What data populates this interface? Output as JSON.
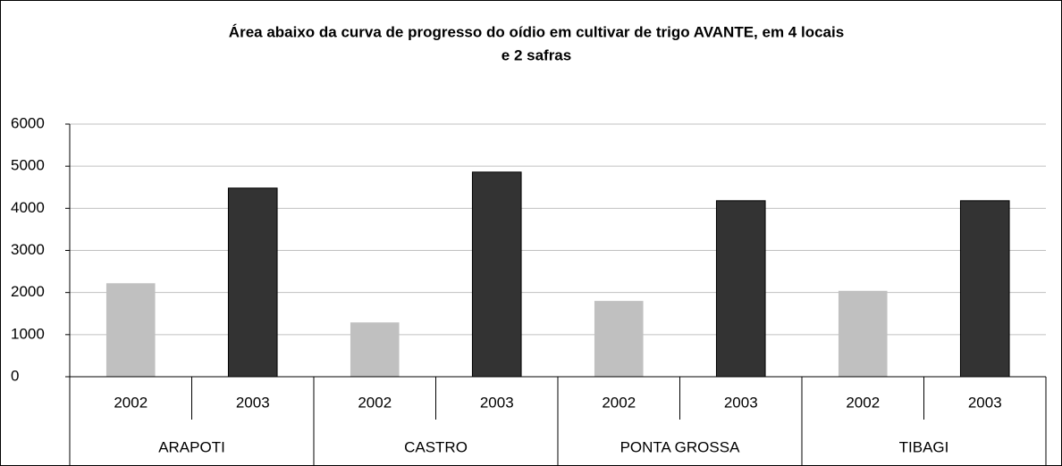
{
  "chart_data": {
    "type": "bar",
    "title": [
      "Área abaixo da curva de progresso do oídio em cultivar de trigo AVANTE, em 4 locais",
      "e 2 safras"
    ],
    "categories": [
      "2002",
      "2003",
      "2002",
      "2003",
      "2002",
      "2003",
      "2002",
      "2003"
    ],
    "groups": [
      "ARAPOTI",
      "CASTRO",
      "PONTA GROSSA",
      "TIBAGI"
    ],
    "values": [
      2220,
      4480,
      1290,
      4860,
      1800,
      4180,
      2040,
      4180
    ],
    "colors": [
      "#c0c0c0",
      "#333333",
      "#c0c0c0",
      "#333333",
      "#c0c0c0",
      "#333333",
      "#c0c0c0",
      "#333333"
    ],
    "ylim": [
      0,
      6000
    ],
    "yticks": [
      0,
      1000,
      2000,
      3000,
      4000,
      5000,
      6000
    ],
    "grid": true
  }
}
